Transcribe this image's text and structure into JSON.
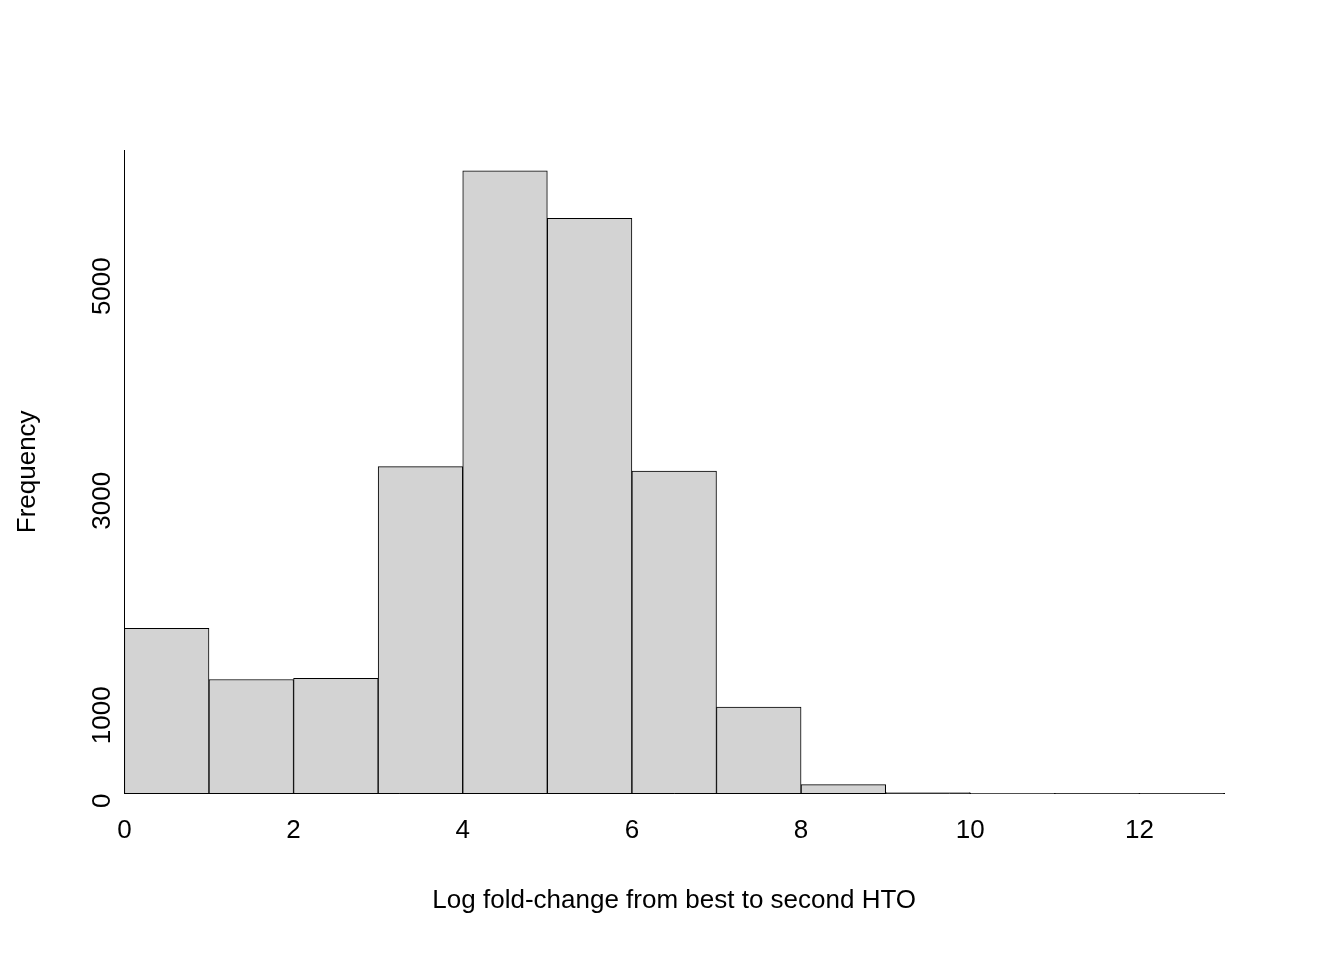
{
  "chart_data": {
    "type": "histogram",
    "x_label": "Log fold-change from best to second HTO",
    "y_label": "Frequency",
    "bins": [
      0,
      1,
      2,
      3,
      4,
      5,
      6,
      7,
      8,
      9,
      10,
      11,
      12,
      13
    ],
    "values": [
      1540,
      1064,
      1074,
      3048,
      5806,
      5362,
      3006,
      806,
      83,
      10,
      3,
      1,
      1
    ],
    "color": "#d3d3d3",
    "xlim": [
      0,
      13
    ],
    "xticks": [
      0,
      2,
      4,
      6,
      8,
      10,
      12
    ],
    "ylim": [
      0,
      6000
    ],
    "yticks": [
      0,
      1000,
      3000,
      5000
    ],
    "grid": false
  }
}
